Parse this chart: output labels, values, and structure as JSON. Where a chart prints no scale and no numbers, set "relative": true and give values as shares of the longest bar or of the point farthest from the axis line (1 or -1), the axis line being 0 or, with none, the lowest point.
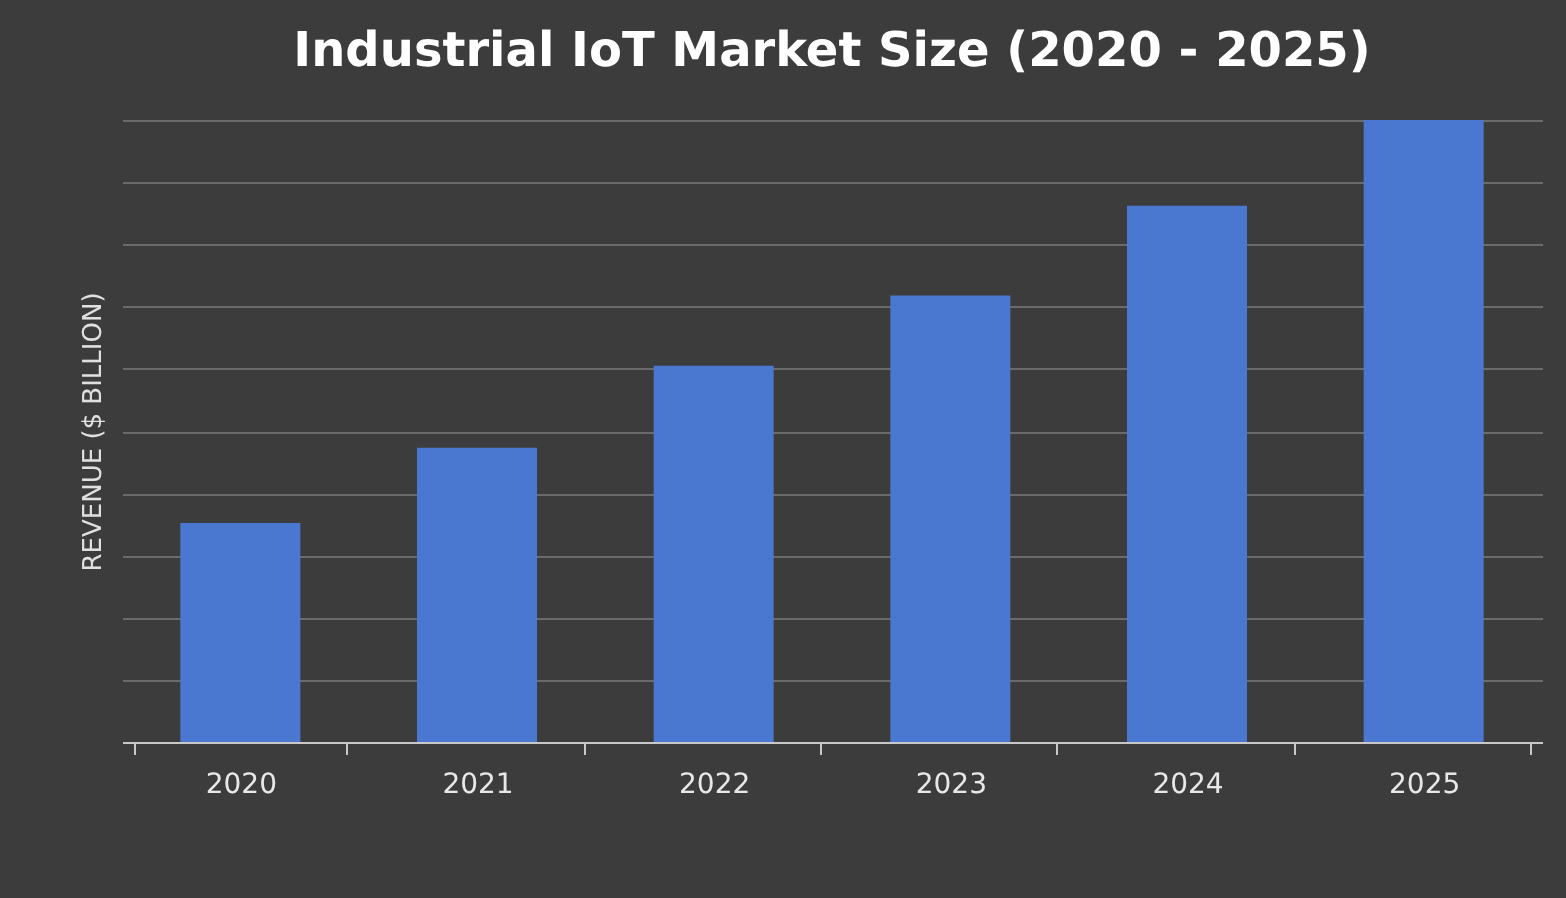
{
  "chart_data": {
    "type": "bar",
    "title": "Industrial IoT Market Size (2020 - 2025)",
    "ylabel": "REVENUE ($ BILLION)",
    "categories": [
      "2020",
      "2021",
      "2022",
      "2023",
      "2024",
      "2025"
    ],
    "values": [
      0.352,
      0.473,
      0.605,
      0.718,
      0.862,
      1
    ],
    "color": "#4a78d0",
    "relative": true,
    "grid": "y"
  }
}
